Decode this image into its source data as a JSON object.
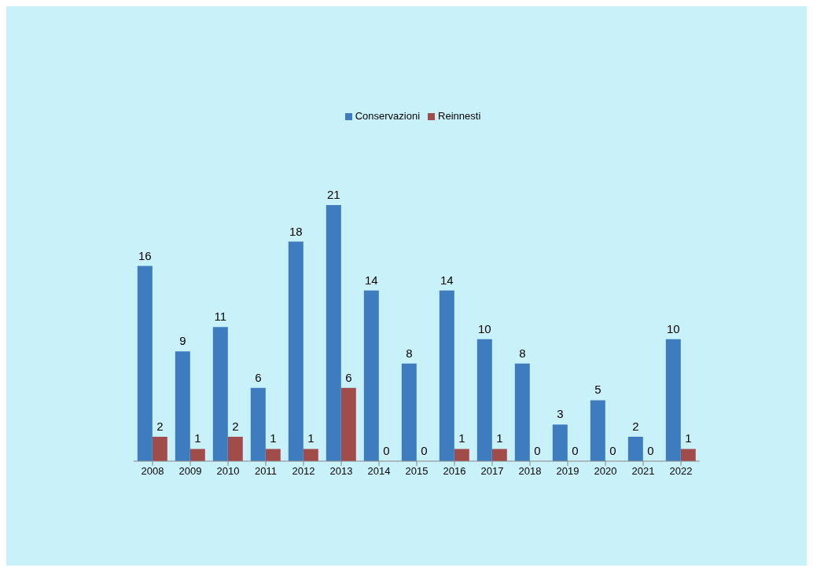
{
  "chart_data": {
    "type": "bar",
    "categories": [
      "2008",
      "2009",
      "2010",
      "2011",
      "2012",
      "2013",
      "2014",
      "2015",
      "2016",
      "2017",
      "2018",
      "2019",
      "2020",
      "2021",
      "2022"
    ],
    "series": [
      {
        "name": "Conservazioni",
        "color": "#3e7cbf",
        "values": [
          16,
          9,
          11,
          6,
          18,
          21,
          14,
          8,
          14,
          10,
          8,
          3,
          5,
          2,
          10
        ]
      },
      {
        "name": "Reinnesti",
        "color": "#a04c4b",
        "values": [
          2,
          1,
          2,
          1,
          1,
          6,
          0,
          0,
          1,
          1,
          0,
          0,
          0,
          0,
          1
        ]
      }
    ],
    "data_labels": true,
    "legend": "top",
    "grid": false
  }
}
